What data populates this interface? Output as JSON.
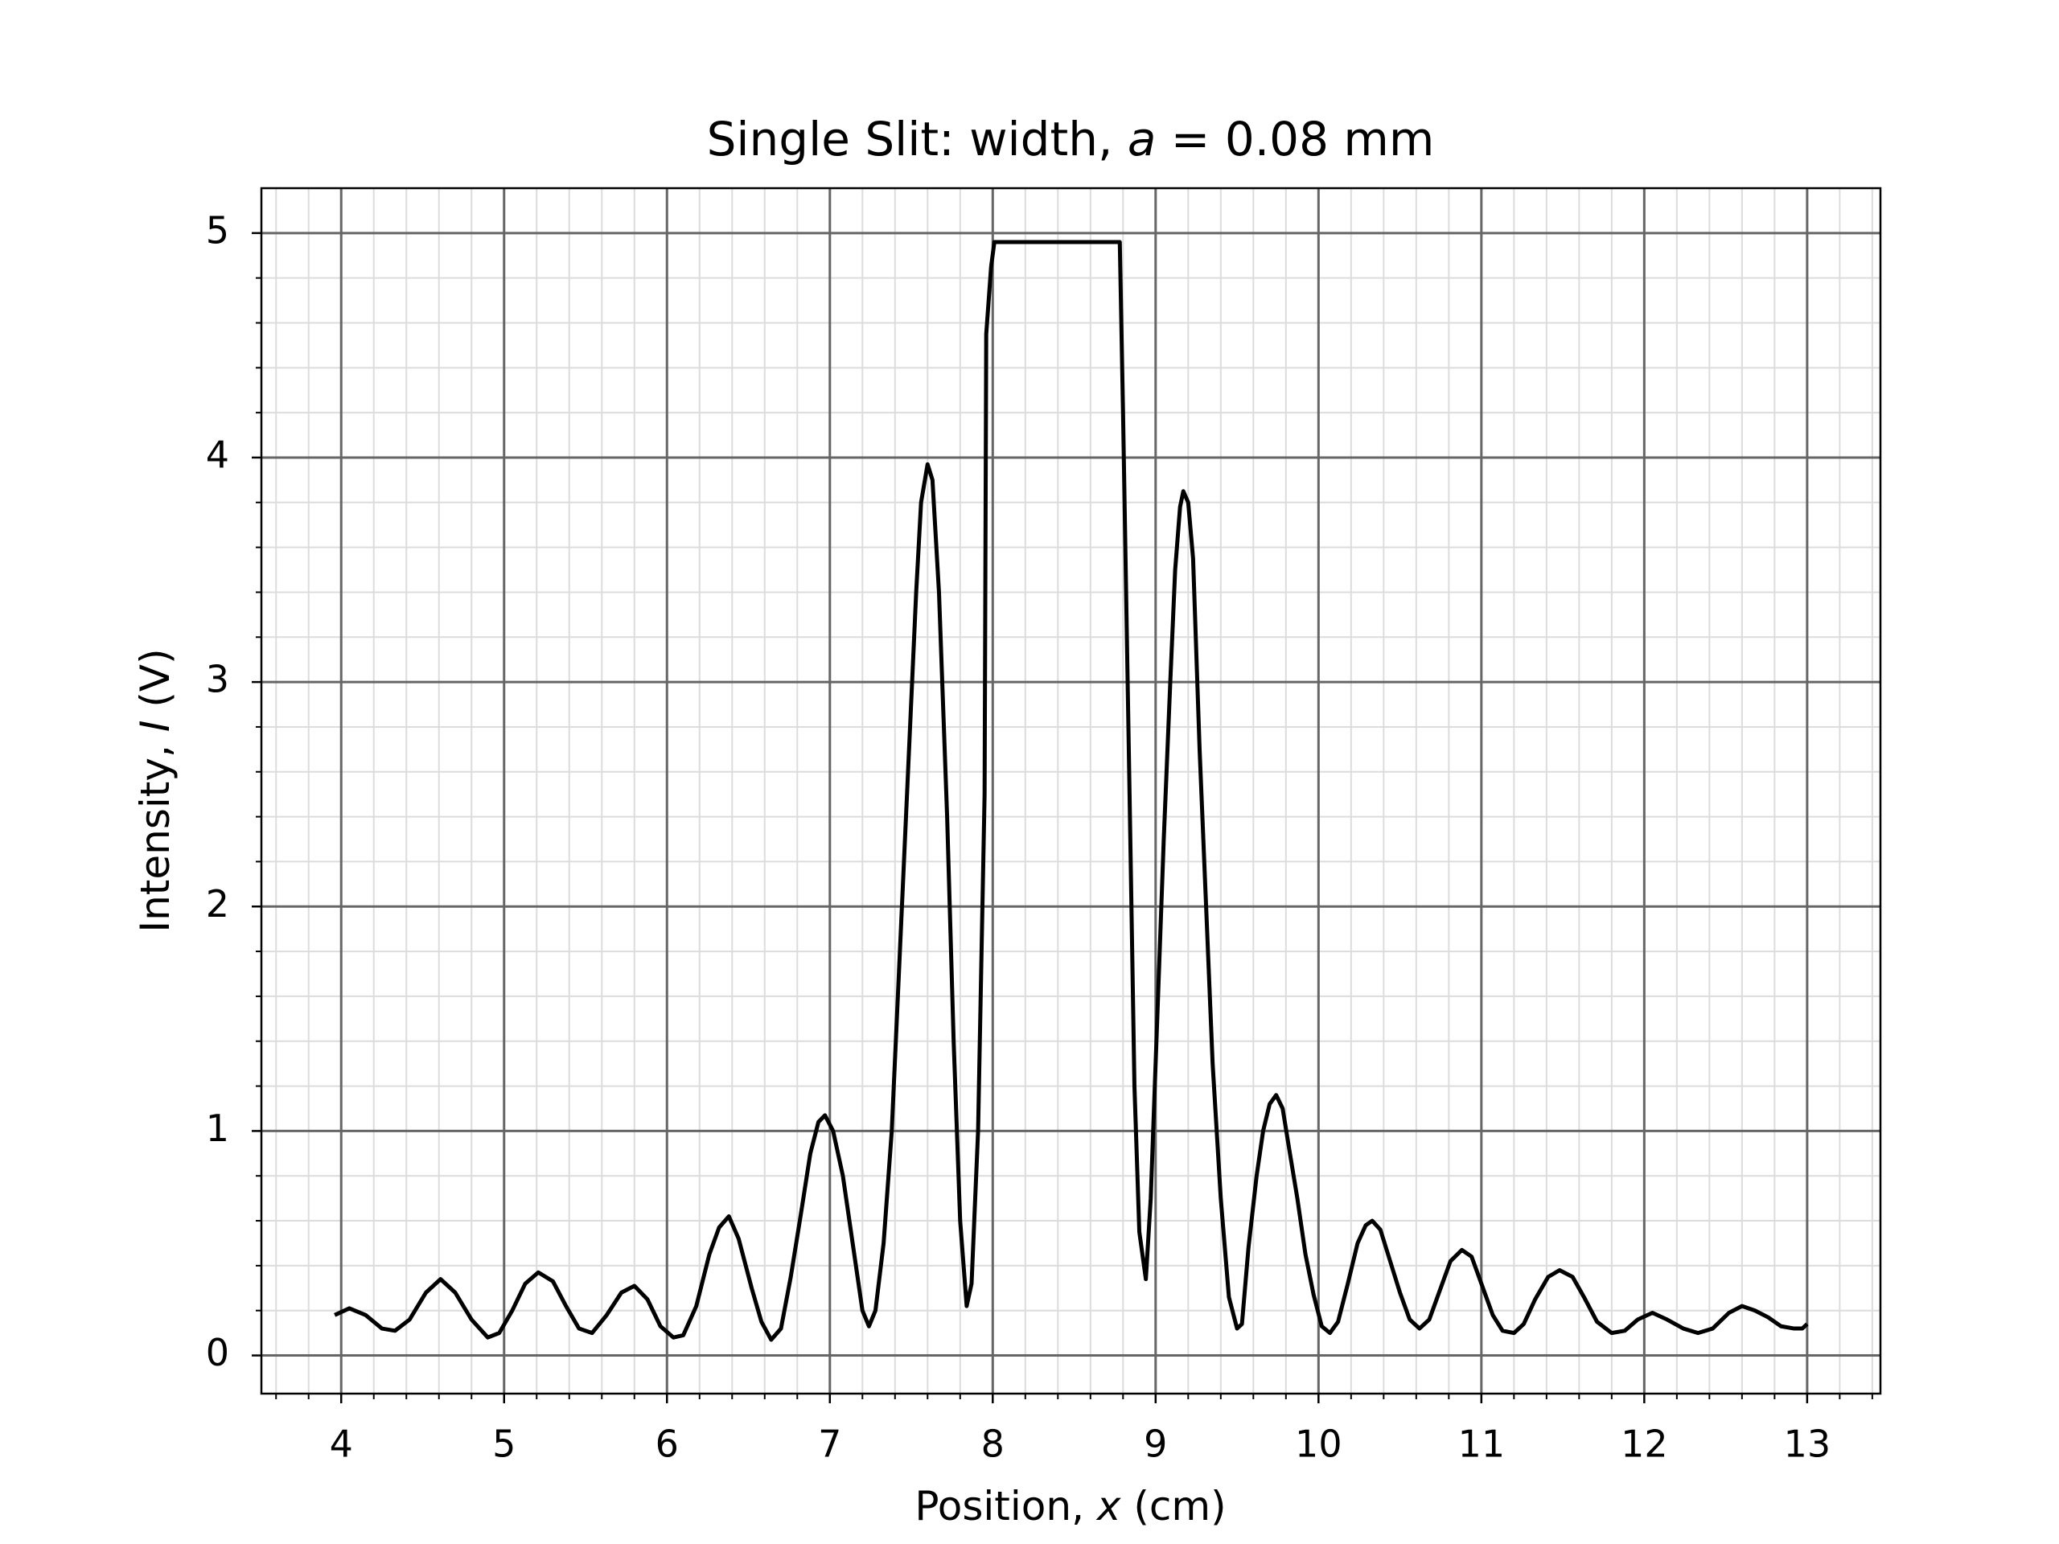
{
  "chart_data": {
    "type": "line",
    "title": [
      "Single Slit: width, ",
      "a",
      " = 0.08 mm"
    ],
    "xlabel": [
      "Position, ",
      "x",
      " (cm)"
    ],
    "ylabel": [
      "Intensity, ",
      "I",
      " (V)"
    ],
    "color": "#000000",
    "grid": true,
    "minor_grid": true,
    "xlim": [
      3.51,
      13.45
    ],
    "ylim": [
      -0.17,
      5.2
    ],
    "xticks": [
      4,
      5,
      6,
      7,
      8,
      9,
      10,
      11,
      12,
      13
    ],
    "yticks": [
      0,
      1,
      2,
      3,
      4,
      5
    ],
    "xminor_ticks": [
      3.6,
      3.8,
      4.2,
      4.4,
      4.6,
      4.8,
      5.2,
      5.4,
      5.6,
      5.8,
      6.2,
      6.4,
      6.6,
      6.8,
      7.2,
      7.4,
      7.6,
      7.8,
      8.2,
      8.4,
      8.6,
      8.8,
      9.2,
      9.4,
      9.6,
      9.8,
      10.2,
      10.4,
      10.6,
      10.8,
      11.2,
      11.4,
      11.6,
      11.8,
      12.2,
      12.4,
      12.6,
      12.8,
      13.2,
      13.4
    ],
    "yminor_ticks": [
      0.2,
      0.4,
      0.6,
      0.8,
      1.2,
      1.4,
      1.6,
      1.8,
      2.2,
      2.4,
      2.6,
      2.8,
      3.2,
      3.4,
      3.6,
      3.8,
      4.2,
      4.4,
      4.6,
      4.8
    ],
    "x": [
      3.96,
      4.05,
      4.15,
      4.25,
      4.33,
      4.42,
      4.52,
      4.61,
      4.7,
      4.8,
      4.9,
      4.97,
      5.05,
      5.13,
      5.21,
      5.3,
      5.38,
      5.46,
      5.54,
      5.63,
      5.72,
      5.8,
      5.88,
      5.96,
      6.04,
      6.1,
      6.18,
      6.26,
      6.32,
      6.38,
      6.44,
      6.52,
      6.58,
      6.64,
      6.7,
      6.76,
      6.82,
      6.88,
      6.93,
      6.97,
      7.02,
      7.08,
      7.14,
      7.2,
      7.24,
      7.28,
      7.33,
      7.38,
      7.43,
      7.48,
      7.53,
      7.56,
      7.6,
      7.63,
      7.67,
      7.72,
      7.76,
      7.8,
      7.84,
      7.87,
      7.91,
      7.95,
      7.96,
      7.99,
      8.01,
      8.78,
      8.8,
      8.84,
      8.87,
      8.9,
      8.94,
      8.97,
      9.01,
      9.05,
      9.09,
      9.12,
      9.15,
      9.17,
      9.2,
      9.23,
      9.27,
      9.31,
      9.35,
      9.4,
      9.45,
      9.5,
      9.53,
      9.57,
      9.62,
      9.66,
      9.7,
      9.74,
      9.78,
      9.82,
      9.87,
      9.92,
      9.97,
      10.02,
      10.07,
      10.12,
      10.18,
      10.24,
      10.29,
      10.33,
      10.38,
      10.44,
      10.5,
      10.56,
      10.62,
      10.68,
      10.74,
      10.81,
      10.88,
      10.94,
      11.0,
      11.07,
      11.13,
      11.2,
      11.26,
      11.33,
      11.41,
      11.48,
      11.56,
      11.63,
      11.71,
      11.8,
      11.88,
      11.96,
      12.05,
      12.14,
      12.24,
      12.33,
      12.42,
      12.52,
      12.6,
      12.68,
      12.76,
      12.84,
      12.92,
      12.97,
      13.0
    ],
    "values": [
      0.18,
      0.21,
      0.18,
      0.12,
      0.11,
      0.16,
      0.28,
      0.34,
      0.28,
      0.16,
      0.08,
      0.1,
      0.2,
      0.32,
      0.37,
      0.33,
      0.22,
      0.12,
      0.1,
      0.18,
      0.28,
      0.31,
      0.25,
      0.13,
      0.08,
      0.09,
      0.22,
      0.45,
      0.57,
      0.62,
      0.52,
      0.3,
      0.15,
      0.07,
      0.12,
      0.35,
      0.62,
      0.9,
      1.04,
      1.07,
      1.0,
      0.8,
      0.5,
      0.2,
      0.13,
      0.2,
      0.5,
      1.0,
      1.8,
      2.6,
      3.4,
      3.8,
      3.97,
      3.9,
      3.4,
      2.4,
      1.4,
      0.6,
      0.22,
      0.32,
      1.0,
      2.5,
      4.55,
      4.85,
      4.96,
      4.96,
      4.2,
      2.5,
      1.2,
      0.55,
      0.34,
      0.7,
      1.5,
      2.3,
      3.0,
      3.5,
      3.78,
      3.85,
      3.8,
      3.55,
      2.7,
      2.0,
      1.3,
      0.7,
      0.26,
      0.12,
      0.14,
      0.48,
      0.8,
      1.0,
      1.12,
      1.16,
      1.1,
      0.92,
      0.7,
      0.45,
      0.27,
      0.13,
      0.1,
      0.15,
      0.32,
      0.5,
      0.58,
      0.6,
      0.56,
      0.42,
      0.28,
      0.16,
      0.12,
      0.16,
      0.28,
      0.42,
      0.47,
      0.44,
      0.32,
      0.18,
      0.11,
      0.1,
      0.14,
      0.25,
      0.35,
      0.38,
      0.35,
      0.26,
      0.15,
      0.1,
      0.11,
      0.16,
      0.19,
      0.16,
      0.12,
      0.1,
      0.12,
      0.19,
      0.22,
      0.2,
      0.17,
      0.13,
      0.12,
      0.12,
      0.14
    ]
  }
}
